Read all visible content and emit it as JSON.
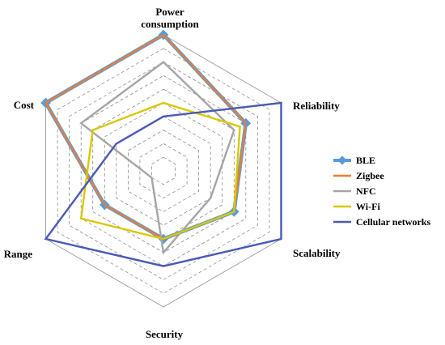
{
  "chart_data": {
    "type": "radar",
    "axes": [
      "Power consumption",
      "Reliability",
      "Scalability",
      "Security",
      "Range",
      "Cost"
    ],
    "rmax": 10,
    "grid_levels": 10,
    "grid": true,
    "legend_position": "right",
    "series": [
      {
        "name": "BLE",
        "color": "#5b9bd5",
        "values": [
          10,
          7,
          6,
          5,
          5,
          10
        ]
      },
      {
        "name": "Zigbee",
        "color": "#ed7d31",
        "values": [
          10,
          7,
          6,
          5,
          5,
          10
        ]
      },
      {
        "name": "NFC",
        "color": "#a5a5a5",
        "values": [
          8,
          6,
          4,
          6,
          1,
          7
        ]
      },
      {
        "name": "Wi-Fi",
        "color": "#d9c800",
        "values": [
          5,
          6.5,
          6,
          5,
          7,
          6
        ]
      },
      {
        "name": "Cellular networks",
        "color": "#4a5ab4",
        "values": [
          4,
          10,
          10,
          7,
          10,
          4
        ]
      }
    ]
  }
}
